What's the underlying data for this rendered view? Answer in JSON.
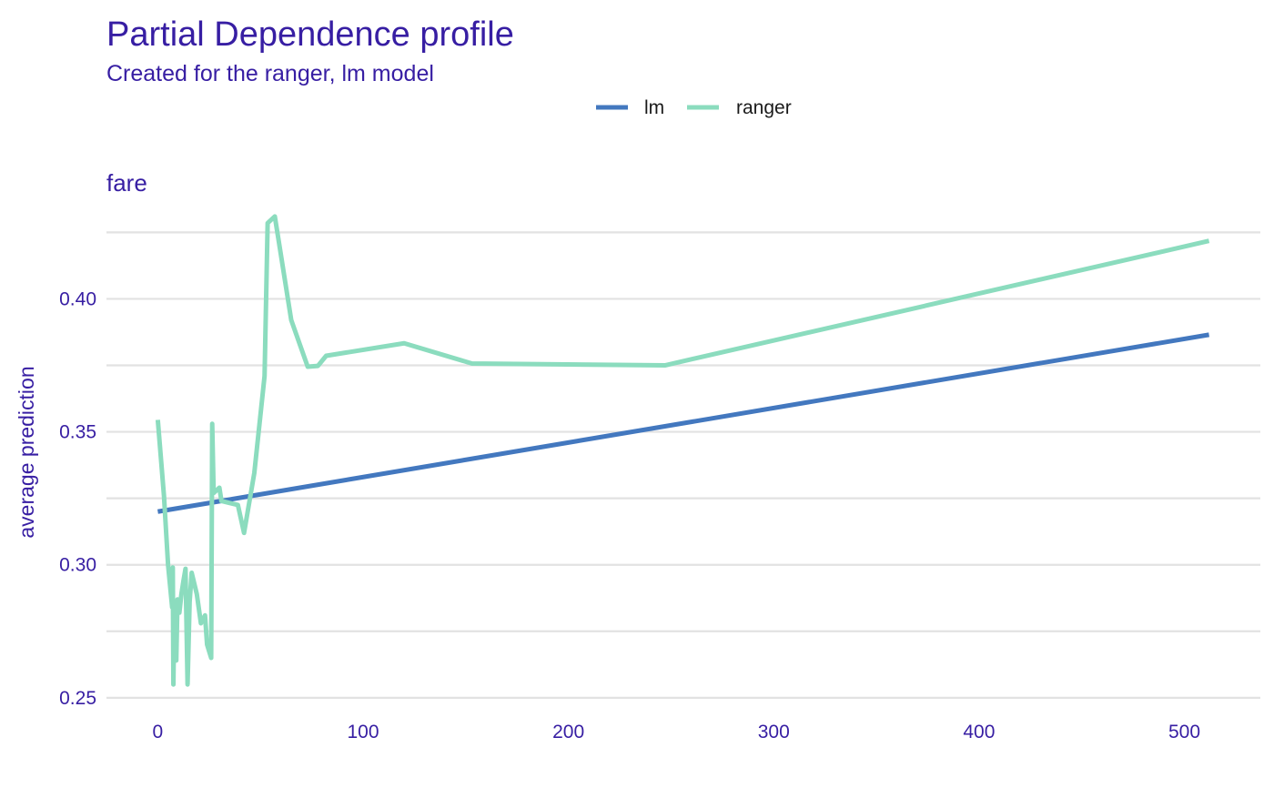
{
  "chart_data": {
    "type": "line",
    "title": "Partial Dependence profile",
    "subtitle": "Created for the ranger, lm model",
    "panel_label": "fare",
    "xlabel": "",
    "ylabel": "average prediction",
    "xlim": [
      -25,
      537
    ],
    "ylim": [
      0.2455,
      0.433
    ],
    "x_ticks": [
      0,
      100,
      200,
      300,
      400,
      500
    ],
    "x_tick_labels": [
      "0",
      "100",
      "200",
      "300",
      "400",
      "500"
    ],
    "y_ticks": [
      0.25,
      0.3,
      0.35,
      0.4
    ],
    "y_tick_labels": [
      "0.25",
      "0.30",
      "0.35",
      "0.40"
    ],
    "y_minor_ticks": [
      0.275,
      0.325,
      0.375,
      0.425
    ],
    "grid": true,
    "legend_position": "top",
    "series": [
      {
        "name": "lm",
        "color": "#4378bf",
        "points": [
          [
            0,
            0.32
          ],
          [
            512,
            0.3865
          ]
        ]
      },
      {
        "name": "ranger",
        "color": "#8bdcbe",
        "points": [
          [
            0,
            0.3545
          ],
          [
            3,
            0.326
          ],
          [
            5,
            0.3
          ],
          [
            7,
            0.284
          ],
          [
            7.3,
            0.299
          ],
          [
            7.6,
            0.255
          ],
          [
            8,
            0.282
          ],
          [
            9,
            0.264
          ],
          [
            9.6,
            0.287
          ],
          [
            10.5,
            0.282
          ],
          [
            11.5,
            0.289
          ],
          [
            12.5,
            0.294
          ],
          [
            13.5,
            0.2985
          ],
          [
            14.5,
            0.255
          ],
          [
            15.5,
            0.286
          ],
          [
            16.5,
            0.297
          ],
          [
            19,
            0.289
          ],
          [
            21,
            0.278
          ],
          [
            23,
            0.281
          ],
          [
            24,
            0.27
          ],
          [
            26,
            0.265
          ],
          [
            26.5,
            0.353
          ],
          [
            27.2,
            0.327
          ],
          [
            30,
            0.329
          ],
          [
            31,
            0.324
          ],
          [
            39,
            0.3225
          ],
          [
            42,
            0.312
          ],
          [
            47,
            0.3345
          ],
          [
            52,
            0.371
          ],
          [
            53.5,
            0.4285
          ],
          [
            57,
            0.431
          ],
          [
            65,
            0.392
          ],
          [
            73,
            0.3745
          ],
          [
            78,
            0.3748
          ],
          [
            82,
            0.3786
          ],
          [
            120,
            0.3833
          ],
          [
            153,
            0.3757
          ],
          [
            247,
            0.375
          ],
          [
            512,
            0.4218
          ]
        ]
      }
    ]
  },
  "colors": {
    "text_accent": "#371ea3",
    "grid": "#e2e2e2",
    "legend_text": "#1a1a1a"
  }
}
